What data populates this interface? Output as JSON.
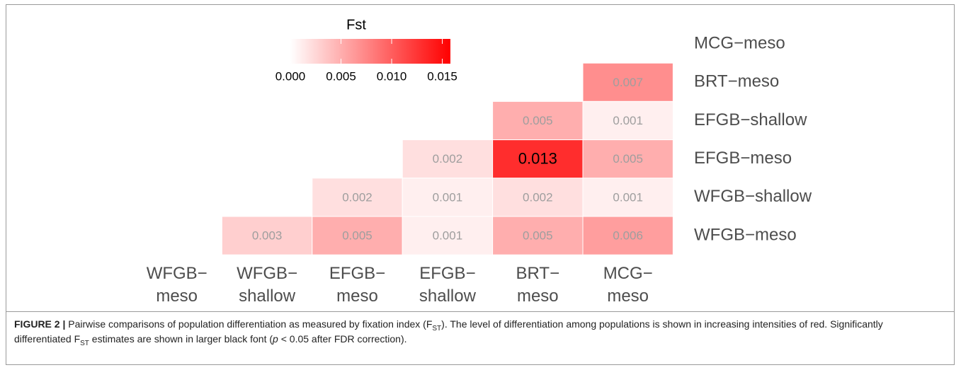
{
  "chart_data": {
    "type": "heatmap",
    "legend_title": "Fst",
    "x_categories": [
      [
        "WFGB−",
        "meso"
      ],
      [
        "WFGB−",
        "shallow"
      ],
      [
        "EFGB−",
        "meso"
      ],
      [
        "EFGB−",
        "shallow"
      ],
      [
        "BRT−",
        "meso"
      ],
      [
        "MCG−",
        "meso"
      ]
    ],
    "y_categories": [
      "MCG−meso",
      "BRT−meso",
      "EFGB−shallow",
      "EFGB−meso",
      "WFGB−shallow",
      "WFGB−meso"
    ],
    "values": [
      [
        null,
        null,
        null,
        null,
        null,
        null
      ],
      [
        null,
        null,
        null,
        null,
        null,
        0.007
      ],
      [
        null,
        null,
        null,
        null,
        0.005,
        0.001
      ],
      [
        null,
        null,
        null,
        0.002,
        0.013,
        0.005
      ],
      [
        null,
        null,
        0.002,
        0.001,
        0.002,
        0.001
      ],
      [
        null,
        0.003,
        0.005,
        0.001,
        0.005,
        0.006
      ]
    ],
    "value_labels": [
      [
        null,
        null,
        null,
        null,
        null,
        null
      ],
      [
        null,
        null,
        null,
        null,
        null,
        "0.007"
      ],
      [
        null,
        null,
        null,
        null,
        "0.005",
        "0.001"
      ],
      [
        null,
        null,
        null,
        "0.002",
        "0.013",
        "0.005"
      ],
      [
        null,
        null,
        "0.002",
        "0.001",
        "0.002",
        "0.001"
      ],
      [
        null,
        "0.003",
        "0.005",
        "0.001",
        "0.005",
        "0.006"
      ]
    ],
    "significant": [
      [
        false,
        false,
        false,
        false,
        false,
        false
      ],
      [
        false,
        false,
        false,
        false,
        false,
        false
      ],
      [
        false,
        false,
        false,
        false,
        false,
        false
      ],
      [
        false,
        false,
        false,
        false,
        true,
        false
      ],
      [
        false,
        false,
        false,
        false,
        false,
        false
      ],
      [
        false,
        false,
        false,
        false,
        false,
        false
      ]
    ],
    "color_low": "#ffffff",
    "color_high": "#ff0000",
    "clim": [
      0,
      0.0158
    ],
    "cticks": [
      {
        "value": 0,
        "label": "0.000"
      },
      {
        "value": 0.005,
        "label": "0.005"
      },
      {
        "value": 0.01,
        "label": "0.010"
      },
      {
        "value": 0.015,
        "label": "0.015"
      }
    ]
  },
  "caption": {
    "label": "FIGURE 2 |",
    "segments": [
      {
        "text": " Pairwise comparisons of population differentiation as measured by fixation index (F",
        "style": "normal"
      },
      {
        "text": "ST",
        "style": "sub"
      },
      {
        "text": "). The level of differentiation among populations is shown in increasing intensities of red. Significantly differentiated F",
        "style": "normal"
      },
      {
        "text": "ST",
        "style": "sub"
      },
      {
        "text": " estimates are shown in larger black font (",
        "style": "normal"
      },
      {
        "text": "p",
        "style": "italic"
      },
      {
        "text": " < 0.05 after FDR correction).",
        "style": "normal"
      }
    ]
  }
}
